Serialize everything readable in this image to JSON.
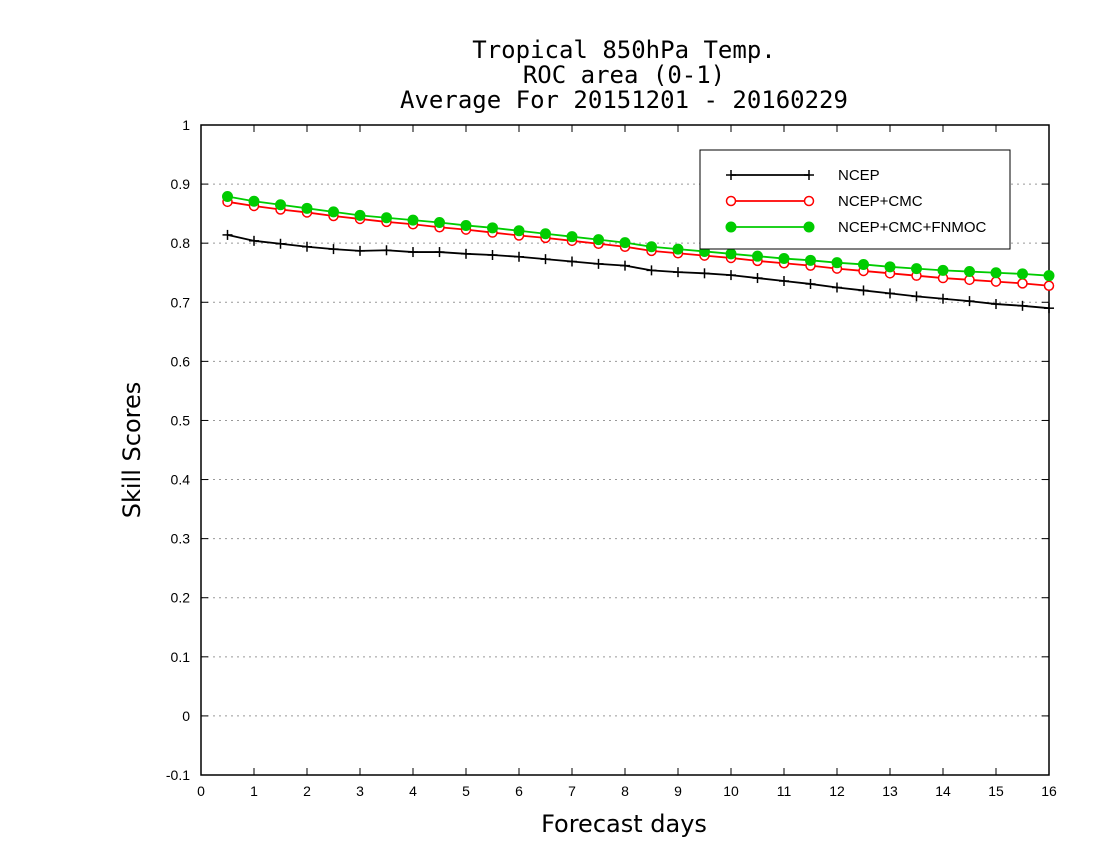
{
  "chart_data": {
    "type": "line",
    "title": [
      "Tropical 850hPa Temp.",
      "ROC area (0-1)",
      "Average For 20151201 - 20160229"
    ],
    "xlabel": "Forecast days",
    "ylabel": "Skill Scores",
    "xlim": [
      0,
      16
    ],
    "ylim": [
      -0.1,
      1
    ],
    "xticks": [
      "0",
      "1",
      "2",
      "3",
      "4",
      "5",
      "6",
      "7",
      "8",
      "9",
      "10",
      "11",
      "12",
      "13",
      "14",
      "15",
      "16"
    ],
    "yticks": [
      "-0.1",
      "0",
      "0.1",
      "0.2",
      "0.3",
      "0.4",
      "0.5",
      "0.6",
      "0.7",
      "0.8",
      "0.9",
      "1"
    ],
    "grid": true,
    "legend_position": "top-right",
    "x": [
      0.5,
      1,
      1.5,
      2,
      2.5,
      3,
      3.5,
      4,
      4.5,
      5,
      5.5,
      6,
      6.5,
      7,
      7.5,
      8,
      8.5,
      9,
      9.5,
      10,
      10.5,
      11,
      11.5,
      12,
      12.5,
      13,
      13.5,
      14,
      14.5,
      15,
      15.5,
      16
    ],
    "series": [
      {
        "name": "NCEP",
        "color": "#000000",
        "marker": "plus",
        "values": [
          0.814,
          0.804,
          0.799,
          0.794,
          0.79,
          0.787,
          0.788,
          0.785,
          0.785,
          0.782,
          0.78,
          0.777,
          0.773,
          0.769,
          0.765,
          0.762,
          0.754,
          0.751,
          0.749,
          0.746,
          0.741,
          0.736,
          0.731,
          0.725,
          0.72,
          0.715,
          0.71,
          0.706,
          0.702,
          0.697,
          0.694,
          0.69
        ]
      },
      {
        "name": "NCEP+CMC",
        "color": "#ff0000",
        "marker": "open-circle",
        "values": [
          0.87,
          0.863,
          0.857,
          0.852,
          0.846,
          0.841,
          0.836,
          0.832,
          0.827,
          0.823,
          0.818,
          0.813,
          0.809,
          0.804,
          0.799,
          0.794,
          0.787,
          0.783,
          0.779,
          0.775,
          0.77,
          0.766,
          0.762,
          0.757,
          0.753,
          0.749,
          0.745,
          0.741,
          0.738,
          0.735,
          0.732,
          0.728
        ]
      },
      {
        "name": "NCEP+CMC+FNMOC",
        "color": "#00cc00",
        "marker": "filled-circle",
        "values": [
          0.879,
          0.871,
          0.865,
          0.859,
          0.853,
          0.847,
          0.843,
          0.839,
          0.835,
          0.83,
          0.826,
          0.821,
          0.816,
          0.811,
          0.806,
          0.801,
          0.794,
          0.79,
          0.786,
          0.782,
          0.778,
          0.774,
          0.771,
          0.767,
          0.764,
          0.76,
          0.757,
          0.754,
          0.752,
          0.75,
          0.748,
          0.745
        ]
      }
    ]
  }
}
